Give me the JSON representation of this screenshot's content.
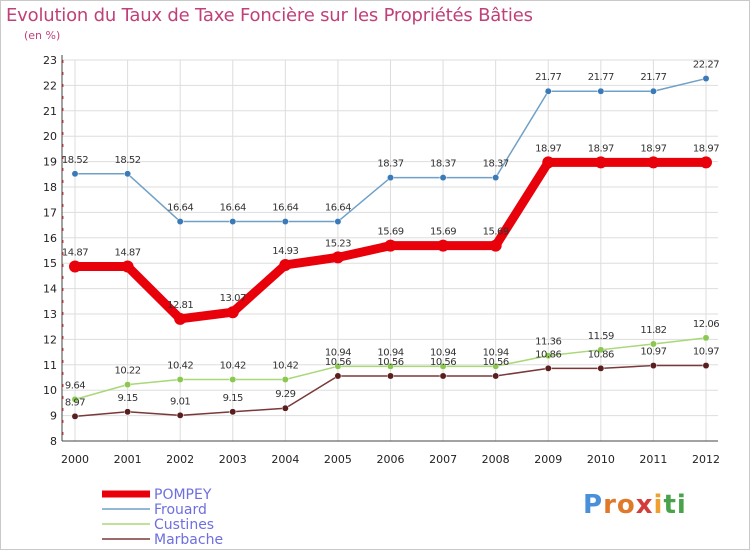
{
  "header": {
    "title": "Evolution du Taux de Taxe Foncière sur les Propriétés Bâties",
    "unit": "(en %)"
  },
  "logo": {
    "text": "Proxiti",
    "letters": [
      "P",
      "r",
      "o",
      "x",
      "i",
      "t",
      "i"
    ],
    "colors": [
      "#4a90d9",
      "#e07a2a",
      "#e07a2a",
      "#d43c3c",
      "#f0a030",
      "#4aa34a",
      "#4aa34a"
    ]
  },
  "chart_data": {
    "type": "line",
    "title": "Evolution du Taux de Taxe Foncière sur les Propriétés Bâties",
    "ylabel": "(en %)",
    "xlabel": "",
    "ylim": [
      8,
      23
    ],
    "yticks": [
      "8",
      "9",
      "10",
      "11",
      "12",
      "13",
      "14",
      "15",
      "16",
      "17",
      "18",
      "19",
      "20",
      "21",
      "22",
      "23"
    ],
    "categories": [
      "2000",
      "2001",
      "2002",
      "2003",
      "2004",
      "2005",
      "2006",
      "2007",
      "2008",
      "2009",
      "2010",
      "2011",
      "2012"
    ],
    "grid": true,
    "legend_position": "bottom-left",
    "series": [
      {
        "name": "Frouard",
        "color": "#6fa0c8",
        "values": [
          18.52,
          18.52,
          16.64,
          16.64,
          16.64,
          16.64,
          18.37,
          18.37,
          18.37,
          21.77,
          21.77,
          21.77,
          22.27
        ],
        "labels": [
          "18.52",
          "18.52",
          "16.64",
          "16.64",
          "16.64",
          "16.64",
          "18.37",
          "18.37",
          "18.37",
          "21.77",
          "21.77",
          "21.77",
          "22.27"
        ]
      },
      {
        "name": "Custines",
        "color": "#a8d878",
        "values": [
          9.64,
          10.22,
          10.42,
          10.42,
          10.42,
          10.94,
          10.94,
          10.94,
          10.94,
          11.36,
          11.59,
          11.82,
          12.06
        ],
        "labels": [
          "9.64",
          "10.22",
          "10.42",
          "10.42",
          "10.42",
          "10.94",
          "10.94",
          "10.94",
          "10.94",
          "11.36",
          "11.59",
          "11.82",
          "12.06"
        ]
      },
      {
        "name": "Marbache",
        "color": "#7a3838",
        "values": [
          8.97,
          9.15,
          9.01,
          9.15,
          9.29,
          10.56,
          10.56,
          10.56,
          10.56,
          10.86,
          10.86,
          10.97,
          10.97
        ],
        "labels": [
          "8.97",
          "9.15",
          "9.01",
          "9.15",
          "9.29",
          "10.56",
          "10.56",
          "10.56",
          "10.56",
          "10.86",
          "10.86",
          "10.97",
          "10.97"
        ]
      },
      {
        "name": "POMPEY",
        "color": "#e8000a",
        "values": [
          14.87,
          14.87,
          12.81,
          13.07,
          14.93,
          15.23,
          15.69,
          15.69,
          15.69,
          18.97,
          18.97,
          18.97,
          18.97
        ],
        "labels": [
          "14.87",
          "14.87",
          "12.81",
          "13.07",
          "14.93",
          "15.23",
          "15.69",
          "15.69",
          "15.69",
          "18.97",
          "18.97",
          "18.97",
          "18.97"
        ]
      }
    ],
    "legend": [
      "POMPEY",
      "Frouard",
      "Custines",
      "Marbache"
    ]
  }
}
